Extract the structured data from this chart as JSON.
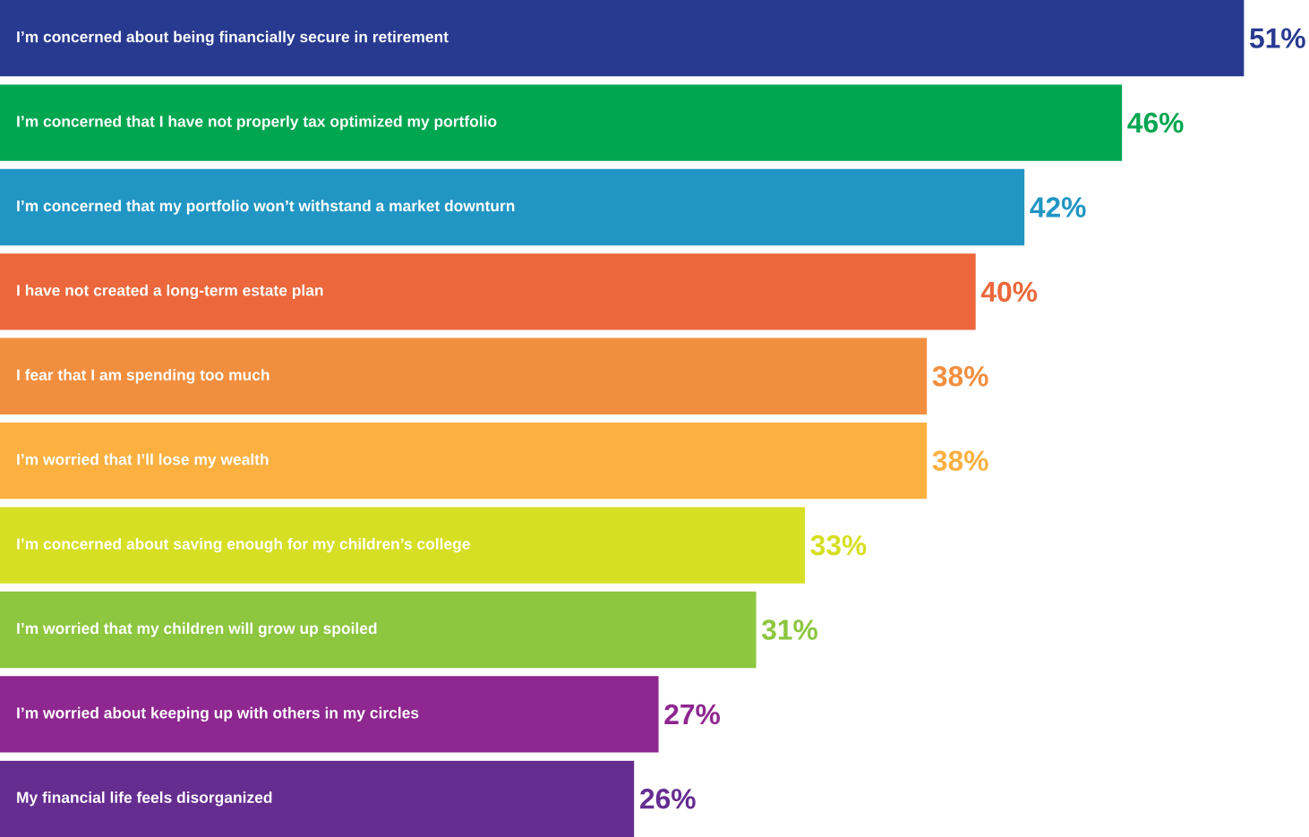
{
  "chart_data": {
    "type": "bar",
    "orientation": "horizontal",
    "categories": [
      "I’m concerned about being financially secure in retirement",
      "I’m concerned that I have not properly tax optimized my portfolio",
      "I’m concerned that my portfolio won’t withstand a market downturn",
      "I have not created a long-term estate plan",
      "I fear that I am spending too much",
      "I’m worried that I’ll lose my wealth",
      "I’m concerned about saving enough for my children’s college",
      "I’m worried that my children will grow up spoiled",
      "I’m worried about keeping up with others in my circles",
      "My financial life feels disorganized"
    ],
    "values": [
      51,
      46,
      42,
      40,
      38,
      38,
      33,
      31,
      27,
      26
    ],
    "value_labels": [
      "51%",
      "46%",
      "42%",
      "40%",
      "38%",
      "38%",
      "33%",
      "31%",
      "27%",
      "26%"
    ],
    "colors": [
      "#283a90",
      "#00a650",
      "#2196c4",
      "#ec673b",
      "#f28f3f",
      "#fbb040",
      "#d6df23",
      "#8dc63f",
      "#8e278f",
      "#662d91"
    ]
  }
}
